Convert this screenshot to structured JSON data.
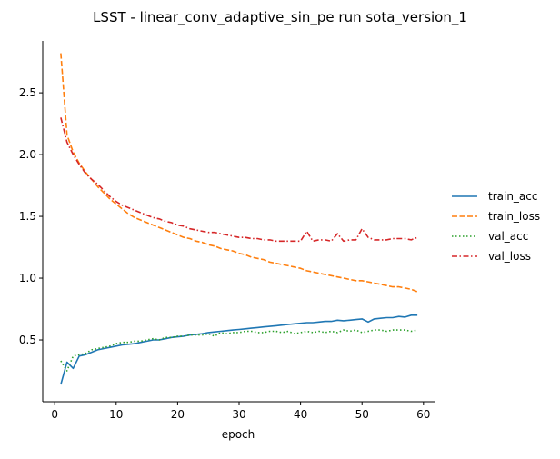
{
  "chart_data": {
    "type": "line",
    "title": "LSST - linear_conv_adaptive_sin_pe run sota_version_1",
    "xlabel": "epoch",
    "ylabel": "",
    "xlim": [
      -1.95,
      61.95
    ],
    "ylim": [
      0.0,
      2.92
    ],
    "xticks": [
      0,
      10,
      20,
      30,
      40,
      50,
      60
    ],
    "yticks": [
      0.5,
      1.0,
      1.5,
      2.0,
      2.5
    ],
    "ytick_labels": [
      "0.5",
      "1.0",
      "1.5",
      "2.0",
      "2.5"
    ],
    "grid": false,
    "legend_position": "right",
    "x": [
      1,
      2,
      3,
      4,
      5,
      6,
      7,
      8,
      9,
      10,
      11,
      12,
      13,
      14,
      15,
      16,
      17,
      18,
      19,
      20,
      21,
      22,
      23,
      24,
      25,
      26,
      27,
      28,
      29,
      30,
      31,
      32,
      33,
      34,
      35,
      36,
      37,
      38,
      39,
      40,
      41,
      42,
      43,
      44,
      45,
      46,
      47,
      48,
      49,
      50,
      51,
      52,
      53,
      54,
      55,
      56,
      57,
      58,
      59
    ],
    "series": [
      {
        "name": "train_acc",
        "color": "#1f77b4",
        "dash": "solid",
        "values": [
          0.14,
          0.32,
          0.27,
          0.37,
          0.38,
          0.4,
          0.42,
          0.43,
          0.44,
          0.45,
          0.46,
          0.465,
          0.47,
          0.48,
          0.49,
          0.5,
          0.5,
          0.51,
          0.52,
          0.525,
          0.53,
          0.54,
          0.545,
          0.55,
          0.56,
          0.565,
          0.57,
          0.575,
          0.58,
          0.585,
          0.59,
          0.595,
          0.6,
          0.605,
          0.61,
          0.615,
          0.62,
          0.625,
          0.63,
          0.635,
          0.64,
          0.64,
          0.645,
          0.65,
          0.65,
          0.66,
          0.655,
          0.66,
          0.665,
          0.67,
          0.645,
          0.67,
          0.675,
          0.68,
          0.68,
          0.69,
          0.685,
          0.7,
          0.7
        ]
      },
      {
        "name": "train_loss",
        "color": "#ff7f0e",
        "dash": "dashed",
        "values": [
          2.82,
          2.16,
          2.02,
          1.93,
          1.86,
          1.8,
          1.74,
          1.69,
          1.64,
          1.6,
          1.56,
          1.52,
          1.49,
          1.47,
          1.45,
          1.43,
          1.41,
          1.39,
          1.37,
          1.35,
          1.33,
          1.32,
          1.3,
          1.29,
          1.27,
          1.26,
          1.24,
          1.23,
          1.22,
          1.2,
          1.19,
          1.17,
          1.16,
          1.15,
          1.13,
          1.12,
          1.11,
          1.1,
          1.09,
          1.08,
          1.06,
          1.05,
          1.04,
          1.03,
          1.02,
          1.01,
          1.0,
          0.99,
          0.98,
          0.98,
          0.97,
          0.96,
          0.95,
          0.94,
          0.93,
          0.93,
          0.92,
          0.91,
          0.89
        ]
      },
      {
        "name": "val_acc",
        "color": "#2ca02c",
        "dash": "dotted",
        "values": [
          0.33,
          0.25,
          0.37,
          0.38,
          0.39,
          0.42,
          0.43,
          0.44,
          0.45,
          0.47,
          0.48,
          0.48,
          0.49,
          0.49,
          0.5,
          0.51,
          0.5,
          0.52,
          0.52,
          0.53,
          0.53,
          0.54,
          0.54,
          0.54,
          0.55,
          0.53,
          0.56,
          0.55,
          0.56,
          0.56,
          0.57,
          0.57,
          0.56,
          0.56,
          0.57,
          0.57,
          0.56,
          0.57,
          0.55,
          0.56,
          0.57,
          0.56,
          0.57,
          0.56,
          0.57,
          0.56,
          0.58,
          0.57,
          0.58,
          0.56,
          0.57,
          0.58,
          0.58,
          0.57,
          0.58,
          0.58,
          0.58,
          0.57,
          0.58
        ]
      },
      {
        "name": "val_loss",
        "color": "#d62728",
        "dash": "dashdot",
        "values": [
          2.3,
          2.1,
          2.0,
          1.92,
          1.85,
          1.8,
          1.76,
          1.71,
          1.66,
          1.62,
          1.59,
          1.57,
          1.55,
          1.53,
          1.51,
          1.49,
          1.48,
          1.46,
          1.45,
          1.43,
          1.42,
          1.4,
          1.39,
          1.38,
          1.37,
          1.37,
          1.36,
          1.35,
          1.34,
          1.33,
          1.33,
          1.32,
          1.32,
          1.31,
          1.31,
          1.3,
          1.3,
          1.3,
          1.3,
          1.3,
          1.38,
          1.3,
          1.31,
          1.31,
          1.3,
          1.36,
          1.3,
          1.31,
          1.31,
          1.4,
          1.33,
          1.31,
          1.31,
          1.31,
          1.32,
          1.32,
          1.32,
          1.31,
          1.33
        ]
      }
    ]
  }
}
